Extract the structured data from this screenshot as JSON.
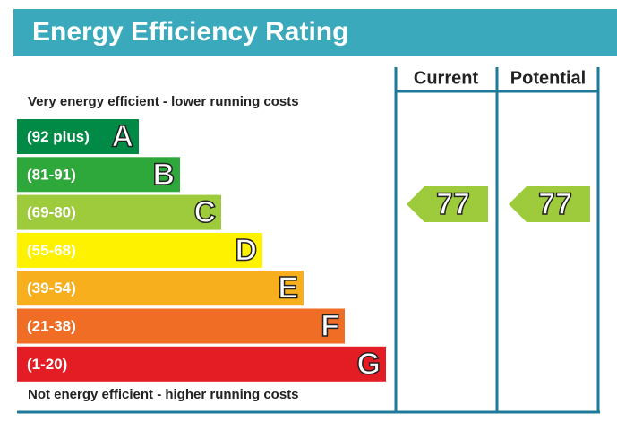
{
  "header": {
    "title": "Energy Efficiency Rating"
  },
  "columns": {
    "current": "Current",
    "potential": "Potential"
  },
  "top_note": "Very energy efficient - lower running costs",
  "bottom_note": "Not energy efficient - higher running costs",
  "bands": [
    {
      "range": "(92 plus)",
      "letter": "A",
      "color": "#008a45"
    },
    {
      "range": "(81-91)",
      "letter": "B",
      "color": "#2ea83a"
    },
    {
      "range": "(69-80)",
      "letter": "C",
      "color": "#9dcb3c"
    },
    {
      "range": "(55-68)",
      "letter": "D",
      "color": "#fff200"
    },
    {
      "range": "(39-54)",
      "letter": "E",
      "color": "#f7af1d"
    },
    {
      "range": "(21-38)",
      "letter": "F",
      "color": "#ef6d24"
    },
    {
      "range": "(1-20)",
      "letter": "G",
      "color": "#e31d23"
    }
  ],
  "ratings": {
    "current": {
      "value": 77,
      "color": "#9dcb3c"
    },
    "potential": {
      "value": 77,
      "color": "#9dcb3c"
    }
  }
}
